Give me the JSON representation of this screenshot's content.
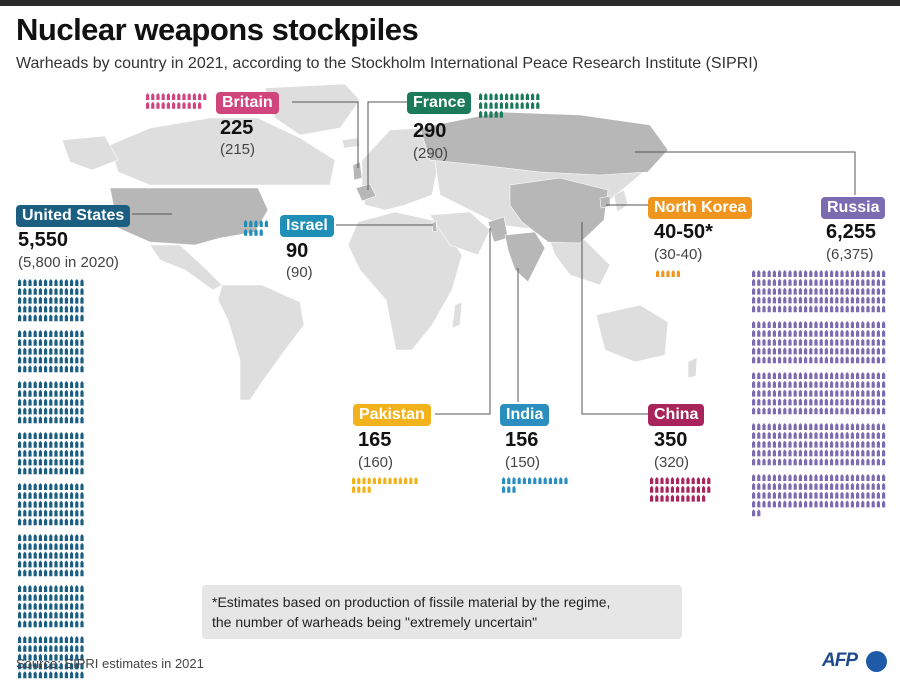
{
  "title": "Nuclear weapons stockpiles",
  "subtitle": "Warheads by country in 2021, according to the Stockholm International Peace Research Institute (SIPRI)",
  "note": {
    "line1": "*Estimates based on production of fissile material by the regime,",
    "line2": "the number of warheads being \"extremely uncertain\""
  },
  "source": "Source: SIPRI estimates in 2021",
  "logo": "AFP",
  "chart_data": {
    "type": "pictogram",
    "unit_per_icon": 10,
    "countries": [
      {
        "key": "us",
        "name": "United States",
        "value_label": "5,550",
        "previous_label": "(5,800 in 2020)",
        "value": 5550,
        "previous": 5800,
        "color": "#1a5e82"
      },
      {
        "key": "russia",
        "name": "Russia",
        "value_label": "6,255",
        "previous_label": "(6,375)",
        "value": 6255,
        "previous": 6375,
        "color": "#7b6bb0"
      },
      {
        "key": "britain",
        "name": "Britain",
        "value_label": "225",
        "previous_label": "(215)",
        "value": 225,
        "previous": 215,
        "color": "#d0457c"
      },
      {
        "key": "france",
        "name": "France",
        "value_label": "290",
        "previous_label": "(290)",
        "value": 290,
        "previous": 290,
        "color": "#1b7a5a"
      },
      {
        "key": "israel",
        "name": "Israel",
        "value_label": "90",
        "previous_label": "(90)",
        "value": 90,
        "previous": 90,
        "color": "#1f8fb8"
      },
      {
        "key": "northkorea",
        "name": "North Korea",
        "value_label": "40-50*",
        "previous_label": "(30-40)",
        "value": 45,
        "previous": 35,
        "color": "#f0961e"
      },
      {
        "key": "pakistan",
        "name": "Pakistan",
        "value_label": "165",
        "previous_label": "(160)",
        "value": 165,
        "previous": 160,
        "color": "#f2b21c"
      },
      {
        "key": "india",
        "name": "India",
        "value_label": "156",
        "previous_label": "(150)",
        "value": 156,
        "previous": 150,
        "color": "#2a8fbf"
      },
      {
        "key": "china",
        "name": "China",
        "value_label": "350",
        "previous_label": "(320)",
        "value": 350,
        "previous": 320,
        "color": "#a8245a"
      }
    ]
  }
}
